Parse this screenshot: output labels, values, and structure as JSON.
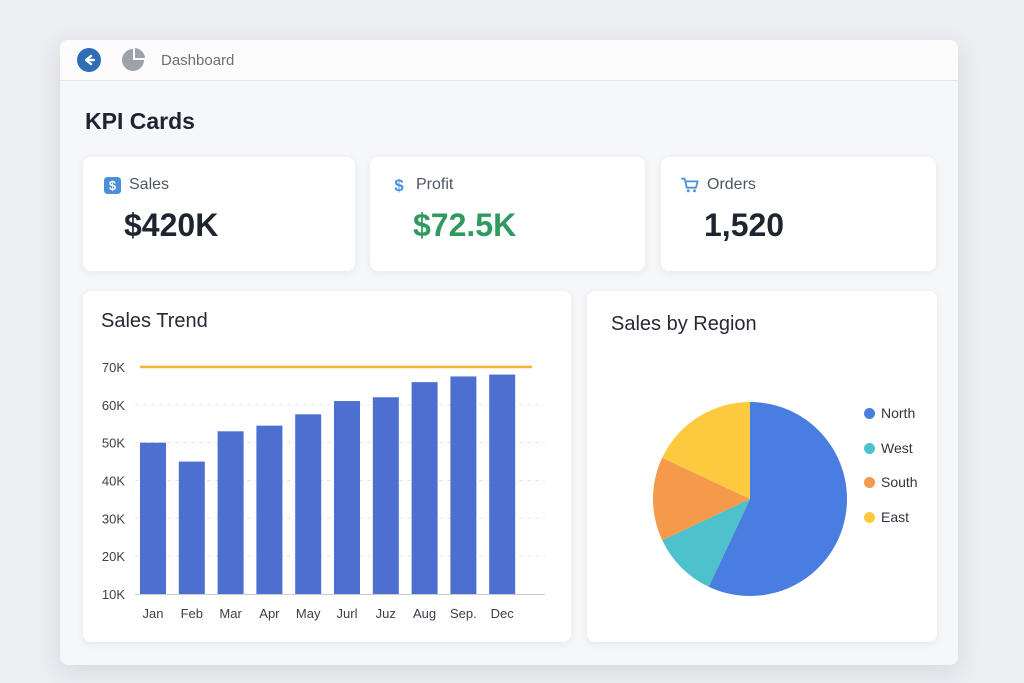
{
  "header": {
    "title": "Dashboard"
  },
  "section_title": "KPI Cards",
  "kpis": [
    {
      "label": "Sales",
      "value": "$420K",
      "icon": "dollar-badge-icon",
      "value_color": "#1e2430"
    },
    {
      "label": "Profit",
      "value": "$72.5K",
      "icon": "dollar-icon",
      "value_color": "#2e9a5e"
    },
    {
      "label": "Orders",
      "value": "1,520",
      "icon": "cart-icon",
      "value_color": "#1e2430"
    }
  ],
  "colors": {
    "accent": "#2f6db5",
    "bar": "#4d6fcf",
    "target": "#f5b52e"
  },
  "chart_data": [
    {
      "type": "bar",
      "title": "Sales Trend",
      "categories": [
        "Jan",
        "Feb",
        "Mar",
        "Apr",
        "May",
        "Jurl",
        "Juz",
        "Aug",
        "Sep.",
        "Dec"
      ],
      "values": [
        50000,
        45000,
        53000,
        54500,
        57500,
        61000,
        62000,
        66000,
        67500,
        68000
      ],
      "target_line": 70000,
      "ylim": [
        10000,
        70000
      ],
      "yticks": [
        10000,
        20000,
        30000,
        40000,
        50000,
        60000,
        70000
      ],
      "ytick_labels": [
        "10K",
        "20K",
        "30K",
        "40K",
        "50K",
        "60K",
        "70K"
      ],
      "grid": true,
      "xlabel": "",
      "ylabel": ""
    },
    {
      "type": "pie",
      "title": "Sales by Region",
      "legend_position": "right",
      "slices": [
        {
          "name": "North",
          "value": 57,
          "color": "#4a7de0"
        },
        {
          "name": "West",
          "value": 11,
          "color": "#4dc1cc"
        },
        {
          "name": "South",
          "value": 14,
          "color": "#f59a4a"
        },
        {
          "name": "East",
          "value": 18,
          "color": "#fcc93f"
        }
      ]
    }
  ]
}
